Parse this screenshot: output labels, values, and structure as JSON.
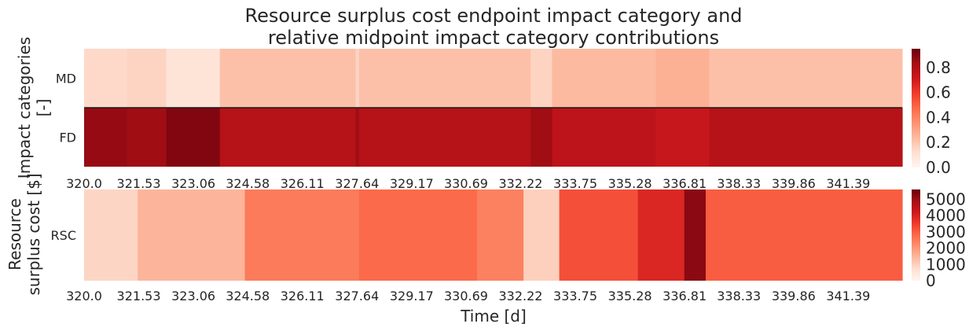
{
  "title_line1": "Resource surplus cost endpoint impact category and",
  "title_line2": "relative midpoint impact category contributions",
  "chart_data": [
    {
      "type": "heatmap",
      "ylabel_line1": "Impact categories",
      "ylabel_line2": "[-]",
      "rows": [
        "MD",
        "FD"
      ],
      "x_ticks": [
        "320.0",
        "321.53",
        "323.06",
        "324.58",
        "326.11",
        "327.64",
        "329.17",
        "330.69",
        "332.22",
        "333.75",
        "335.28",
        "336.81",
        "338.33",
        "339.86",
        "341.39"
      ],
      "x_range": [
        320.0,
        342.9
      ],
      "colorbar_ticks": [
        "0.0",
        "0.2",
        "0.4",
        "0.6",
        "0.8"
      ],
      "vmin": 0.0,
      "vmax": 0.95,
      "colormap": [
        "#fff5f0",
        "#fee0d2",
        "#fcbba1",
        "#fc9272",
        "#fb6a4a",
        "#ef3b2c",
        "#cb181d",
        "#a50f15",
        "#67000d"
      ],
      "segments": [
        {
          "x": [
            320.0,
            321.2
          ],
          "MD": 0.14,
          "FD": 0.86
        },
        {
          "x": [
            321.2,
            322.3
          ],
          "MD": 0.16,
          "FD": 0.84
        },
        {
          "x": [
            322.3,
            323.8
          ],
          "MD": 0.1,
          "FD": 0.9
        },
        {
          "x": [
            323.8,
            327.6
          ],
          "MD": 0.22,
          "FD": 0.78
        },
        {
          "x": [
            327.6,
            327.7
          ],
          "MD": 0.16,
          "FD": 0.84
        },
        {
          "x": [
            327.7,
            332.5
          ],
          "MD": 0.22,
          "FD": 0.78
        },
        {
          "x": [
            332.5,
            333.1
          ],
          "MD": 0.16,
          "FD": 0.84
        },
        {
          "x": [
            333.1,
            336.0
          ],
          "MD": 0.24,
          "FD": 0.76
        },
        {
          "x": [
            336.0,
            337.5
          ],
          "MD": 0.27,
          "FD": 0.73
        },
        {
          "x": [
            337.5,
            342.9
          ],
          "MD": 0.22,
          "FD": 0.78
        }
      ]
    },
    {
      "type": "heatmap",
      "ylabel_line1": "Resource",
      "ylabel_line2": "surplus cost [$]",
      "xlabel": "Time [d]",
      "rows": [
        "RSC"
      ],
      "x_ticks": [
        "320.0",
        "321.53",
        "323.06",
        "324.58",
        "326.11",
        "327.64",
        "329.17",
        "330.69",
        "332.22",
        "333.75",
        "335.28",
        "336.81",
        "338.33",
        "339.86",
        "341.39"
      ],
      "x_range": [
        320.0,
        342.9
      ],
      "colorbar_ticks": [
        "0",
        "1000",
        "2000",
        "3000",
        "4000",
        "5000"
      ],
      "vmin": 0,
      "vmax": 5600,
      "colormap": [
        "#fff5f0",
        "#fee0d2",
        "#fcbba1",
        "#fc9272",
        "#fb6a4a",
        "#ef3b2c",
        "#cb181d",
        "#a50f15",
        "#67000d"
      ],
      "segments": [
        {
          "x": [
            320.0,
            321.5
          ],
          "RSC": 900
        },
        {
          "x": [
            321.5,
            324.5
          ],
          "RSC": 1500
        },
        {
          "x": [
            324.5,
            327.7
          ],
          "RSC": 2500
        },
        {
          "x": [
            327.7,
            331.0
          ],
          "RSC": 2800
        },
        {
          "x": [
            331.0,
            332.3
          ],
          "RSC": 2400
        },
        {
          "x": [
            332.3,
            333.3
          ],
          "RSC": 1000
        },
        {
          "x": [
            333.3,
            335.5
          ],
          "RSC": 3200
        },
        {
          "x": [
            335.5,
            336.8
          ],
          "RSC": 3900
        },
        {
          "x": [
            336.8,
            337.4
          ],
          "RSC": 5200
        },
        {
          "x": [
            337.4,
            342.9
          ],
          "RSC": 3000
        }
      ]
    }
  ]
}
